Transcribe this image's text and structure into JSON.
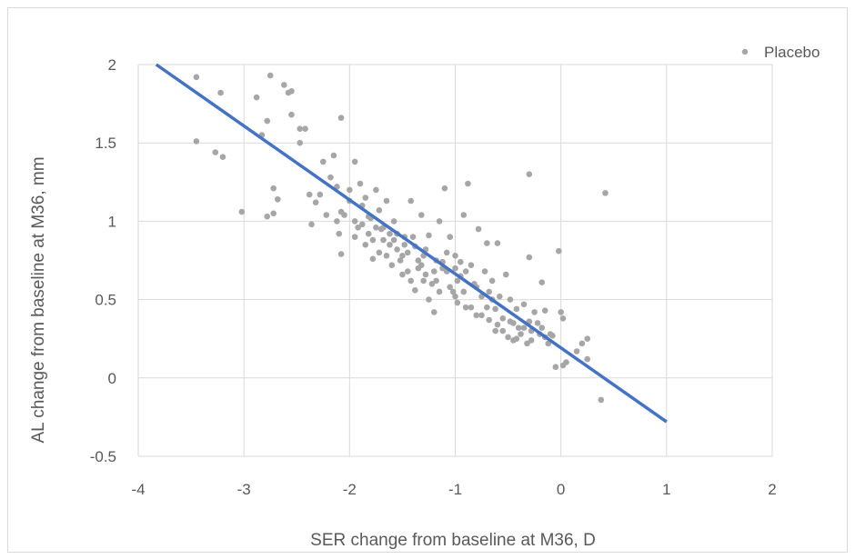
{
  "chart_data": {
    "type": "scatter",
    "xlabel": "SER change from baseline at M36, D",
    "ylabel": "AL change from baseline at M36, mm",
    "xlim": [
      -4,
      2
    ],
    "ylim": [
      -0.5,
      2
    ],
    "x_ticks": [
      "-4",
      "-3",
      "-2",
      "-1",
      "0",
      "1",
      "2"
    ],
    "y_ticks": [
      "-0.5",
      "0",
      "0.5",
      "1",
      "1.5",
      "2"
    ],
    "grid": "vertical and horizontal",
    "legend_position": "top-right",
    "colors": {
      "points": "#a6a6a6",
      "trendline": "#4472c4",
      "grid": "#d9d9d9",
      "text": "#595959"
    },
    "series": [
      {
        "name": "Placebo",
        "points": [
          [
            -3.45,
            1.92
          ],
          [
            -3.45,
            1.51
          ],
          [
            -3.22,
            1.82
          ],
          [
            -3.27,
            1.44
          ],
          [
            -3.2,
            1.41
          ],
          [
            -3.02,
            1.06
          ],
          [
            -2.75,
            1.93
          ],
          [
            -2.88,
            1.79
          ],
          [
            -2.83,
            1.55
          ],
          [
            -2.78,
            1.64
          ],
          [
            -2.78,
            1.03
          ],
          [
            -2.72,
            1.05
          ],
          [
            -2.72,
            1.21
          ],
          [
            -2.68,
            1.14
          ],
          [
            -2.62,
            1.87
          ],
          [
            -2.58,
            1.82
          ],
          [
            -2.55,
            1.83
          ],
          [
            -2.55,
            1.68
          ],
          [
            -2.47,
            1.59
          ],
          [
            -2.42,
            1.59
          ],
          [
            -2.47,
            1.5
          ],
          [
            -2.38,
            1.17
          ],
          [
            -2.36,
            0.98
          ],
          [
            -2.28,
            1.17
          ],
          [
            -2.25,
            1.38
          ],
          [
            -2.18,
            1.28
          ],
          [
            -2.15,
            1.42
          ],
          [
            -2.12,
            1.22
          ],
          [
            -2.08,
            1.66
          ],
          [
            -2.08,
            1.06
          ],
          [
            -2.05,
            1.04
          ],
          [
            -2.1,
            0.92
          ],
          [
            -2.08,
            0.79
          ],
          [
            -2.0,
            1.13
          ],
          [
            -1.95,
            1.38
          ],
          [
            -1.95,
            1.0
          ],
          [
            -1.9,
            1.24
          ],
          [
            -1.88,
            0.98
          ],
          [
            -1.85,
            1.15
          ],
          [
            -1.85,
            0.85
          ],
          [
            -1.82,
            1.03
          ],
          [
            -1.78,
            0.88
          ],
          [
            -1.75,
            1.2
          ],
          [
            -1.72,
            1.07
          ],
          [
            -1.7,
            0.95
          ],
          [
            -1.65,
            1.13
          ],
          [
            -1.62,
            0.85
          ],
          [
            -1.58,
            1.0
          ],
          [
            -1.55,
            0.92
          ],
          [
            -1.52,
            0.75
          ],
          [
            -1.5,
            0.66
          ],
          [
            -1.48,
            0.85
          ],
          [
            -1.45,
            0.8
          ],
          [
            -1.42,
            1.13
          ],
          [
            -1.4,
            0.9
          ],
          [
            -1.38,
            0.56
          ],
          [
            -1.35,
            0.75
          ],
          [
            -1.32,
            1.04
          ],
          [
            -1.3,
            0.62
          ],
          [
            -1.28,
            0.82
          ],
          [
            -1.25,
            0.91
          ],
          [
            -1.22,
            0.6
          ],
          [
            -1.2,
            0.42
          ],
          [
            -1.18,
            0.75
          ],
          [
            -1.15,
            1.0
          ],
          [
            -1.12,
            0.7
          ],
          [
            -1.1,
            1.21
          ],
          [
            -1.08,
            0.68
          ],
          [
            -1.05,
            0.9
          ],
          [
            -1.02,
            0.55
          ],
          [
            -1.0,
            0.78
          ],
          [
            -0.98,
            0.48
          ],
          [
            -0.95,
            0.65
          ],
          [
            -0.92,
            1.04
          ],
          [
            -0.9,
            0.45
          ],
          [
            -0.88,
            1.24
          ],
          [
            -0.85,
            0.72
          ],
          [
            -0.82,
            0.6
          ],
          [
            -0.8,
            0.4
          ],
          [
            -0.78,
            0.95
          ],
          [
            -0.75,
            0.52
          ],
          [
            -0.72,
            0.68
          ],
          [
            -0.7,
            0.45
          ],
          [
            -0.68,
            0.37
          ],
          [
            -0.65,
            0.62
          ],
          [
            -0.62,
            0.3
          ],
          [
            -0.6,
            0.86
          ],
          [
            -0.58,
            0.52
          ],
          [
            -0.55,
            0.38
          ],
          [
            -0.52,
            0.66
          ],
          [
            -0.5,
            0.26
          ],
          [
            -0.48,
            0.5
          ],
          [
            -0.45,
            0.35
          ],
          [
            -0.42,
            0.44
          ],
          [
            -0.4,
            0.32
          ],
          [
            -0.38,
            0.28
          ],
          [
            -0.35,
            0.47
          ],
          [
            -0.32,
            0.22
          ],
          [
            -0.3,
            0.77
          ],
          [
            -0.28,
            0.3
          ],
          [
            -0.25,
            0.42
          ],
          [
            -0.22,
            0.35
          ],
          [
            -0.2,
            0.28
          ],
          [
            -0.18,
            0.61
          ],
          [
            -0.15,
            0.43
          ],
          [
            -0.12,
            0.22
          ],
          [
            -0.08,
            0.27
          ],
          [
            -0.05,
            0.07
          ],
          [
            -0.02,
            0.81
          ],
          [
            0.0,
            0.42
          ],
          [
            0.02,
            0.38
          ],
          [
            0.02,
            0.08
          ],
          [
            0.15,
            0.17
          ],
          [
            0.2,
            0.22
          ],
          [
            0.25,
            0.25
          ],
          [
            0.25,
            0.12
          ],
          [
            0.38,
            -0.14
          ],
          [
            0.42,
            1.18
          ],
          [
            -0.3,
            1.3
          ],
          [
            -1.65,
            0.78
          ],
          [
            -1.6,
            0.72
          ],
          [
            -1.72,
            0.8
          ],
          [
            -1.78,
            0.76
          ],
          [
            -1.68,
            0.88
          ],
          [
            -1.5,
            0.78
          ],
          [
            -1.45,
            0.68
          ],
          [
            -1.35,
            0.7
          ],
          [
            -1.28,
            0.66
          ],
          [
            -1.18,
            0.62
          ],
          [
            -1.05,
            0.58
          ],
          [
            -0.98,
            0.62
          ],
          [
            -0.92,
            0.55
          ],
          [
            -1.0,
            0.52
          ],
          [
            -1.08,
            0.8
          ],
          [
            -1.15,
            0.55
          ],
          [
            -1.25,
            0.5
          ],
          [
            -1.32,
            0.72
          ],
          [
            -1.42,
            0.62
          ],
          [
            -1.55,
            0.82
          ],
          [
            -1.62,
            0.92
          ],
          [
            -1.82,
            0.92
          ],
          [
            -1.92,
            0.96
          ],
          [
            -2.0,
            1.2
          ],
          [
            -1.95,
            0.9
          ],
          [
            -1.88,
            1.1
          ],
          [
            -1.75,
            0.96
          ],
          [
            -0.85,
            0.45
          ],
          [
            -0.8,
            0.58
          ],
          [
            -0.75,
            0.4
          ],
          [
            -0.68,
            0.55
          ],
          [
            -0.62,
            0.44
          ],
          [
            -0.55,
            0.3
          ],
          [
            -0.48,
            0.36
          ],
          [
            -0.42,
            0.25
          ],
          [
            -0.35,
            0.32
          ],
          [
            -0.28,
            0.24
          ],
          [
            -0.18,
            0.32
          ],
          [
            -0.1,
            0.28
          ],
          [
            -1.0,
            0.7
          ],
          [
            -0.95,
            0.74
          ],
          [
            -0.9,
            0.68
          ],
          [
            -1.12,
            0.74
          ],
          [
            -1.2,
            0.68
          ],
          [
            -1.3,
            0.78
          ],
          [
            -1.38,
            0.84
          ],
          [
            -1.48,
            0.9
          ],
          [
            -1.58,
            0.88
          ],
          [
            -1.68,
            0.96
          ],
          [
            -2.32,
            1.12
          ],
          [
            -2.22,
            1.04
          ],
          [
            -2.12,
            1.0
          ],
          [
            -1.8,
            1.02
          ],
          [
            -0.7,
            0.86
          ],
          [
            -0.65,
            0.5
          ],
          [
            -0.6,
            0.34
          ],
          [
            -0.45,
            0.24
          ],
          [
            -0.3,
            0.36
          ],
          [
            -0.15,
            0.26
          ],
          [
            0.05,
            0.1
          ]
        ]
      }
    ],
    "trendline": {
      "type": "linear",
      "from": [
        -3.83,
        2.0
      ],
      "to": [
        1.0,
        -0.28
      ]
    }
  }
}
